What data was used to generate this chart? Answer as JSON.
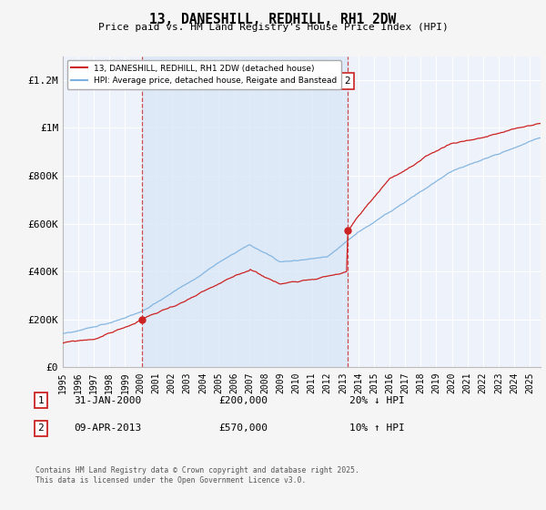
{
  "title": "13, DANESHILL, REDHILL, RH1 2DW",
  "subtitle": "Price paid vs. HM Land Registry's House Price Index (HPI)",
  "ylim": [
    0,
    1300000
  ],
  "yticks": [
    0,
    200000,
    400000,
    600000,
    800000,
    1000000,
    1200000
  ],
  "ytick_labels": [
    "£0",
    "£200K",
    "£400K",
    "£600K",
    "£800K",
    "£1M",
    "£1.2M"
  ],
  "xlim_start": 1995.0,
  "xlim_end": 2025.7,
  "fig_bg_color": "#f5f5f5",
  "plot_bg_color": "#eef2fa",
  "grid_color": "#ffffff",
  "shade_color": "#dce8f8",
  "hpi_color": "#7ab0de",
  "price_color": "#cc2222",
  "t1": 2000.08,
  "t2": 2013.28,
  "t1_price": 200000,
  "t2_price": 570000,
  "legend_entry1": "13, DANESHILL, REDHILL, RH1 2DW (detached house)",
  "legend_entry2": "HPI: Average price, detached house, Reigate and Banstead",
  "annotation1_date": "31-JAN-2000",
  "annotation1_price": "£200,000",
  "annotation1_hpi": "20% ↓ HPI",
  "annotation2_date": "09-APR-2013",
  "annotation2_price": "£570,000",
  "annotation2_hpi": "10% ↑ HPI",
  "footer": "Contains HM Land Registry data © Crown copyright and database right 2025.\nThis data is licensed under the Open Government Licence v3.0."
}
